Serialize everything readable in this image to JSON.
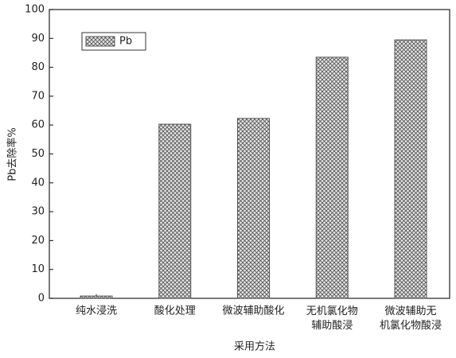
{
  "chart_data": {
    "type": "bar",
    "x_label": "采用方法",
    "y_label": "Pb去除率%",
    "categories": [
      "纯水浸洗",
      "酸化处理",
      "微波辅助酸化",
      "无机氯化物\n辅助酸浸",
      "微波辅助无\n机氯化物酸浸"
    ],
    "series": [
      {
        "name": "Pb",
        "color": "#555555",
        "values": [
          0.8,
          60.3,
          62.3,
          83.5,
          89.5
        ]
      }
    ],
    "ylim": [
      0,
      100
    ],
    "yticks": [
      0,
      10,
      20,
      30,
      40,
      50,
      60,
      70,
      80,
      90,
      100
    ],
    "legend": "upper left"
  }
}
